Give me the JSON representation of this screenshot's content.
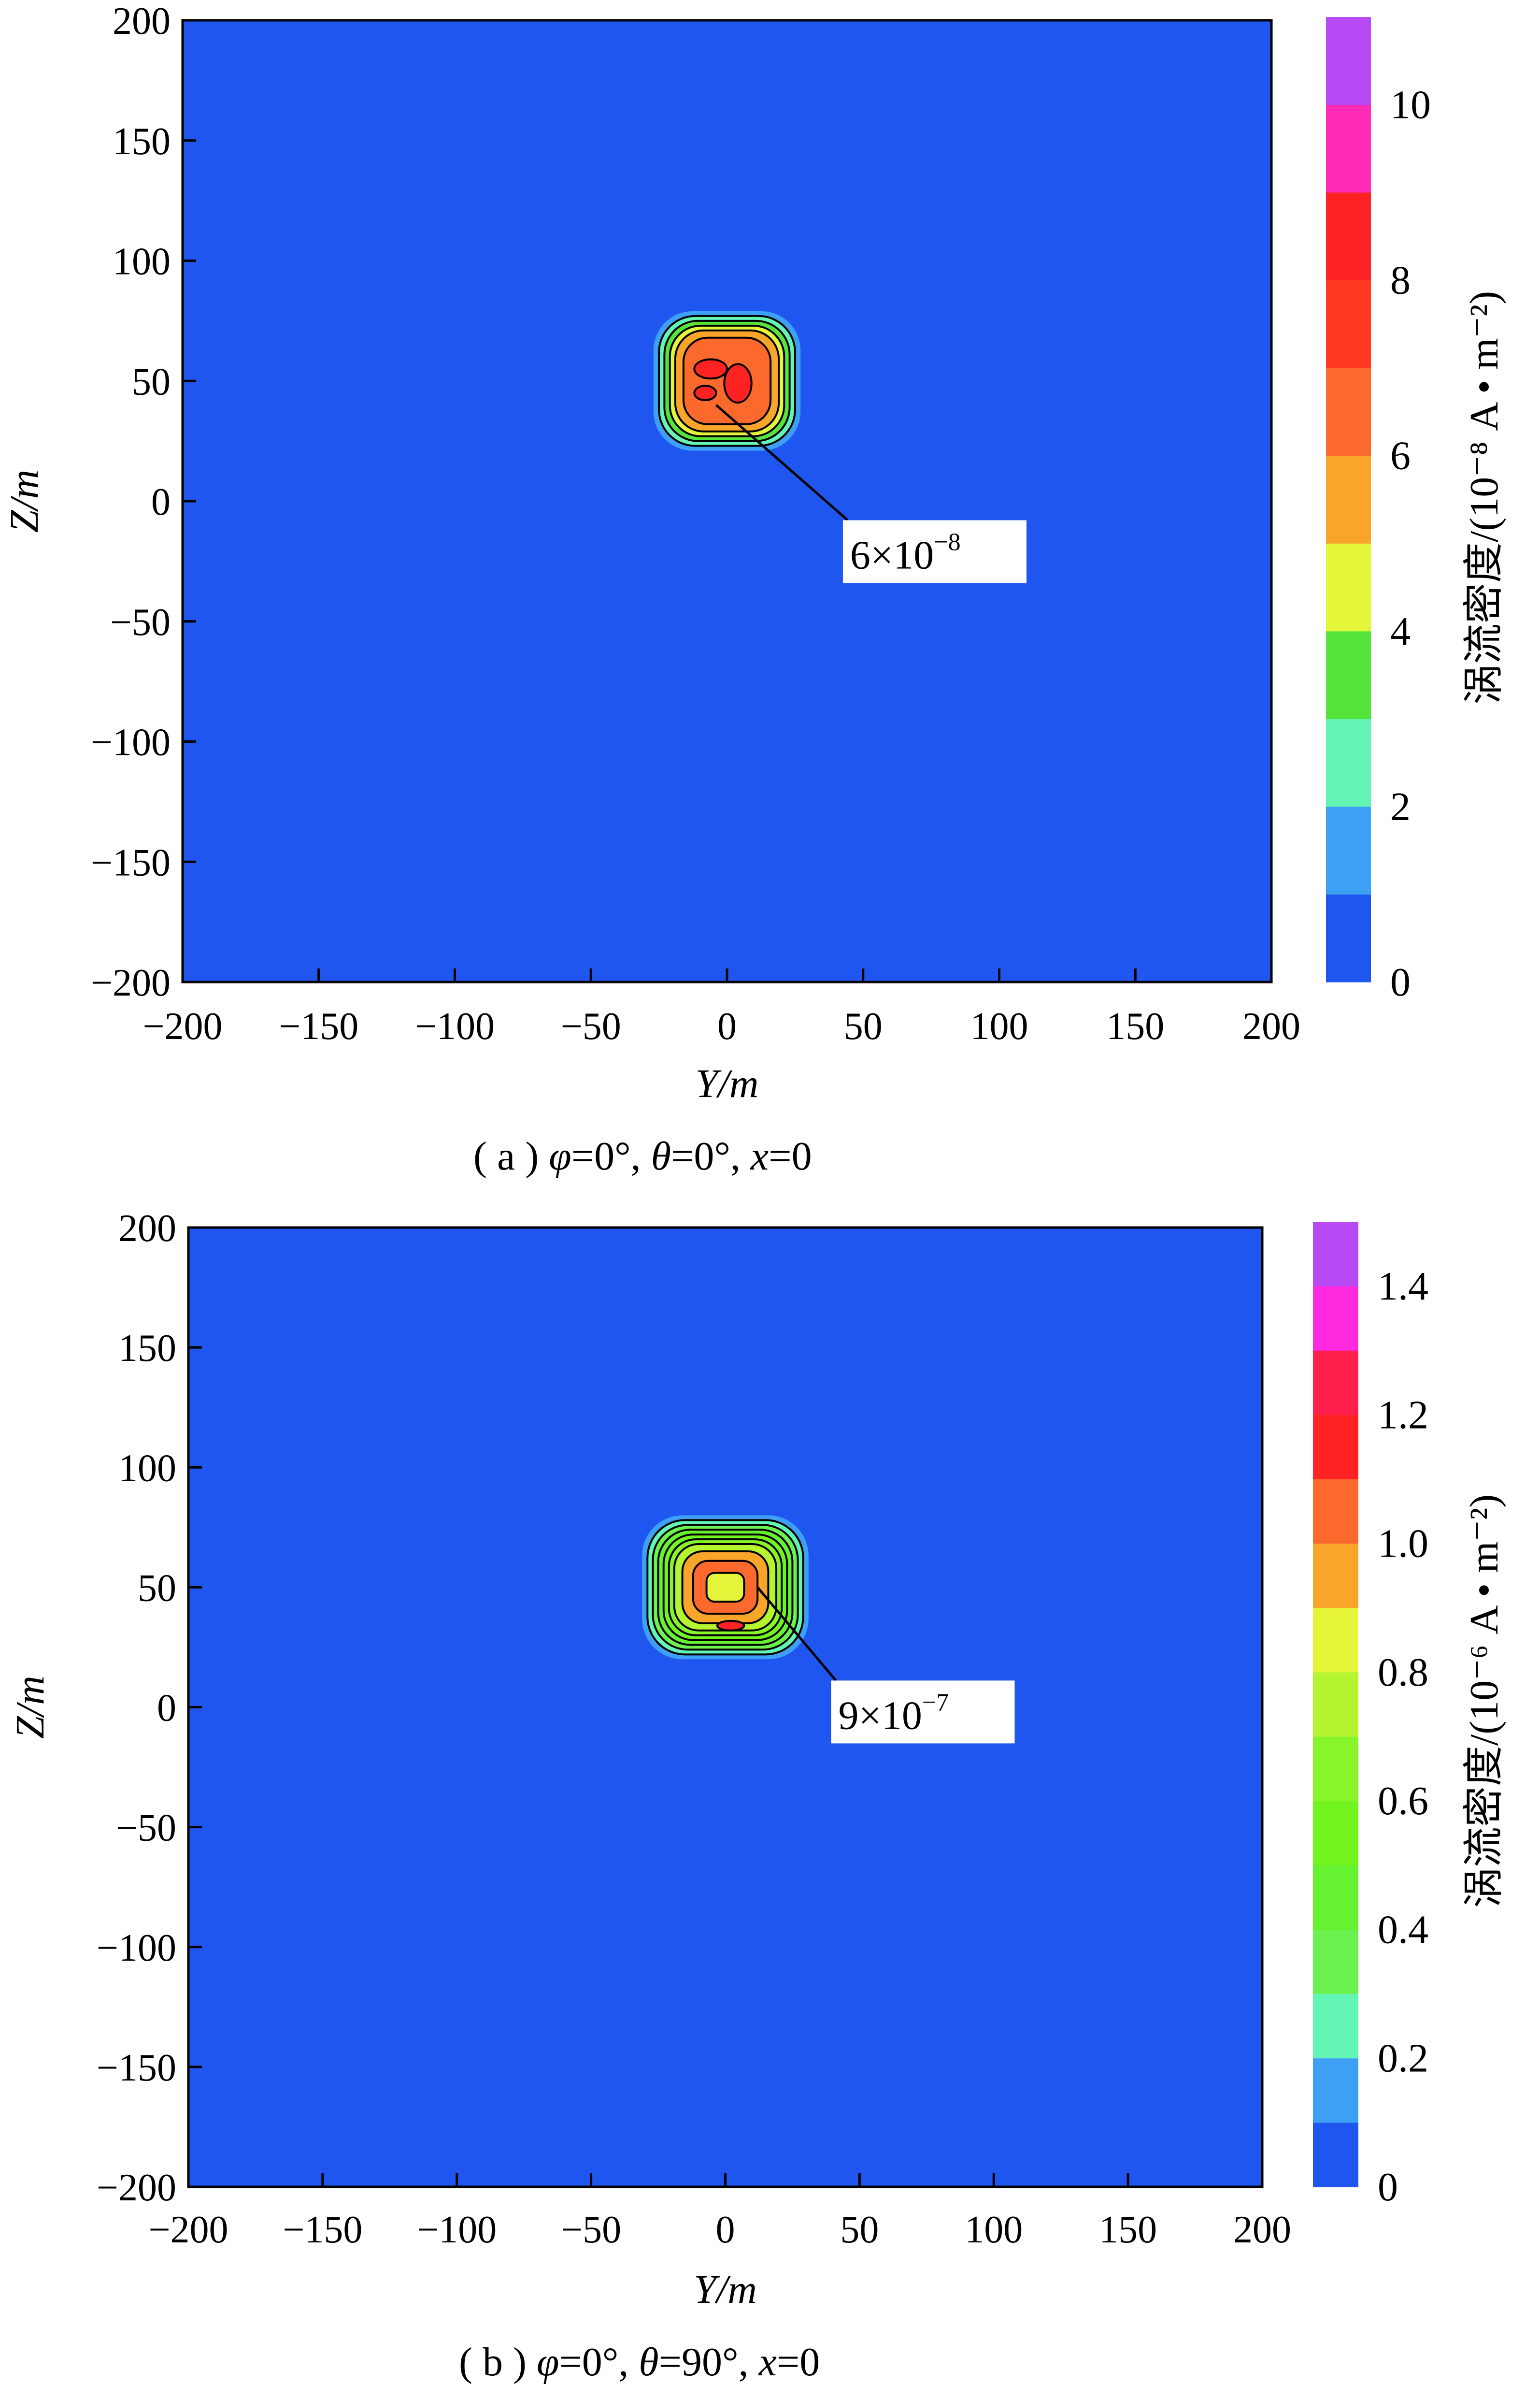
{
  "colors": {
    "background_blue": "#1f56f0",
    "axis": "#000000",
    "contour": "#000000",
    "label_box": "#ffffff"
  },
  "chart_data": [
    {
      "type": "heatmap",
      "panel": "a",
      "xlabel": "Y/m",
      "ylabel": "Z/m",
      "xlim": [
        -200,
        200
      ],
      "ylim": [
        -200,
        200
      ],
      "xticks": [
        -200,
        -150,
        -100,
        -50,
        0,
        50,
        100,
        150,
        200
      ],
      "yticks": [
        -200,
        -150,
        -100,
        -50,
        0,
        50,
        100,
        150,
        200
      ],
      "caption_parts": [
        "( a ) ",
        "φ",
        "=0°, ",
        "θ",
        "=0°, ",
        "x",
        "=0"
      ],
      "colorbar": {
        "label": "涡流密度/(10⁻⁸ A • m⁻²)",
        "range": [
          0,
          11
        ],
        "tick_values": [
          0,
          2,
          4,
          6,
          8,
          10
        ],
        "tick_labels": [
          "0",
          "2",
          "4",
          "6",
          "8",
          "10"
        ],
        "bands": [
          {
            "from": 0,
            "to": 1,
            "color": "#1f56f0"
          },
          {
            "from": 1,
            "to": 2,
            "color": "#3ea0f5"
          },
          {
            "from": 2,
            "to": 3,
            "color": "#63f5b6"
          },
          {
            "from": 3,
            "to": 4,
            "color": "#55e43a"
          },
          {
            "from": 4,
            "to": 5,
            "color": "#e4f53a"
          },
          {
            "from": 5,
            "to": 6,
            "color": "#f9a52a"
          },
          {
            "from": 6,
            "to": 7,
            "color": "#fb6a2c"
          },
          {
            "from": 7,
            "to": 8,
            "color": "#fe3b22"
          },
          {
            "from": 8,
            "to": 9,
            "color": "#fe2222"
          },
          {
            "from": 9,
            "to": 10,
            "color": "#ff2ab5"
          },
          {
            "from": 10,
            "to": 11,
            "color": "#b84af5"
          }
        ]
      },
      "hotspot": {
        "center": [
          0,
          50
        ],
        "levels": [
          {
            "level": 1.5,
            "rx": 27,
            "ry": 29
          },
          {
            "level": 2.5,
            "rx": 25,
            "ry": 27
          },
          {
            "level": 3.5,
            "rx": 23,
            "ry": 25
          },
          {
            "level": 4.5,
            "rx": 21,
            "ry": 23
          },
          {
            "level": 5.5,
            "rx": 19,
            "ry": 21
          },
          {
            "level": 6.5,
            "rx": 16,
            "ry": 18
          }
        ],
        "peak_patches": [
          {
            "level": 8,
            "y": -6,
            "z": 55,
            "rx": 6,
            "ry": 4
          },
          {
            "level": 8,
            "y": 4,
            "z": 49,
            "rx": 5,
            "ry": 8
          },
          {
            "level": 8,
            "y": -8,
            "z": 45,
            "rx": 4,
            "ry": 3
          }
        ]
      },
      "annotation": {
        "text_parts": [
          "6×10",
          "−8"
        ],
        "point": [
          -4,
          40
        ],
        "label_at": [
          55,
          -22
        ]
      }
    },
    {
      "type": "heatmap",
      "panel": "b",
      "xlabel": "Y/m",
      "ylabel": "Z/m",
      "xlim": [
        -200,
        200
      ],
      "ylim": [
        -200,
        200
      ],
      "xticks": [
        -200,
        -150,
        -100,
        -50,
        0,
        50,
        100,
        150,
        200
      ],
      "yticks": [
        -200,
        -150,
        -100,
        -50,
        0,
        50,
        100,
        150,
        200
      ],
      "caption_parts": [
        "( b ) ",
        "φ",
        "=0°, ",
        "θ",
        "=90°, ",
        "x",
        "=0"
      ],
      "colorbar": {
        "label": "涡流密度/(10⁻⁶ A • m⁻²)",
        "range": [
          0,
          1.5
        ],
        "tick_values": [
          0,
          0.2,
          0.4,
          0.6,
          0.8,
          1.0,
          1.2,
          1.4
        ],
        "tick_labels": [
          "0",
          "0.2",
          "0.4",
          "0.6",
          "0.8",
          "1.0",
          "1.2",
          "1.4"
        ],
        "bands": [
          {
            "from": 0,
            "to": 0.1,
            "color": "#1f56f0"
          },
          {
            "from": 0.1,
            "to": 0.2,
            "color": "#3ea0f5"
          },
          {
            "from": 0.2,
            "to": 0.3,
            "color": "#63f5b6"
          },
          {
            "from": 0.3,
            "to": 0.4,
            "color": "#6cf24e"
          },
          {
            "from": 0.4,
            "to": 0.5,
            "color": "#66f230"
          },
          {
            "from": 0.5,
            "to": 0.6,
            "color": "#72f51f"
          },
          {
            "from": 0.6,
            "to": 0.7,
            "color": "#88f52a"
          },
          {
            "from": 0.7,
            "to": 0.8,
            "color": "#b4f530"
          },
          {
            "from": 0.8,
            "to": 0.9,
            "color": "#e4f53a"
          },
          {
            "from": 0.9,
            "to": 1.0,
            "color": "#f9a52a"
          },
          {
            "from": 1.0,
            "to": 1.1,
            "color": "#fb6a2c"
          },
          {
            "from": 1.1,
            "to": 1.2,
            "color": "#fe2222"
          },
          {
            "from": 1.2,
            "to": 1.3,
            "color": "#ff1f4a"
          },
          {
            "from": 1.3,
            "to": 1.4,
            "color": "#ff2ae0"
          },
          {
            "from": 1.4,
            "to": 1.5,
            "color": "#b84af5"
          }
        ]
      },
      "hotspot": {
        "center": [
          0,
          50
        ],
        "levels": [
          {
            "level": 0.15,
            "rx": 31,
            "ry": 30
          },
          {
            "level": 0.25,
            "rx": 29,
            "ry": 28
          },
          {
            "level": 0.35,
            "rx": 27,
            "ry": 26
          },
          {
            "level": 0.45,
            "rx": 25,
            "ry": 24
          },
          {
            "level": 0.55,
            "rx": 23,
            "ry": 22
          },
          {
            "level": 0.65,
            "rx": 21,
            "ry": 20
          },
          {
            "level": 0.75,
            "rx": 19,
            "ry": 18
          },
          {
            "level": 0.95,
            "rx": 16,
            "ry": 15
          },
          {
            "level": 1.05,
            "rx": 12,
            "ry": 11
          },
          {
            "level": 0.85,
            "rx": 7,
            "ry": 6
          }
        ],
        "peak_patches": [
          {
            "level": 1.15,
            "y": 2,
            "z": 34,
            "rx": 5,
            "ry": 2
          }
        ]
      },
      "annotation": {
        "text_parts": [
          "9×10",
          "−7"
        ],
        "point": [
          12,
          50
        ],
        "label_at": [
          52,
          -3
        ]
      }
    }
  ]
}
